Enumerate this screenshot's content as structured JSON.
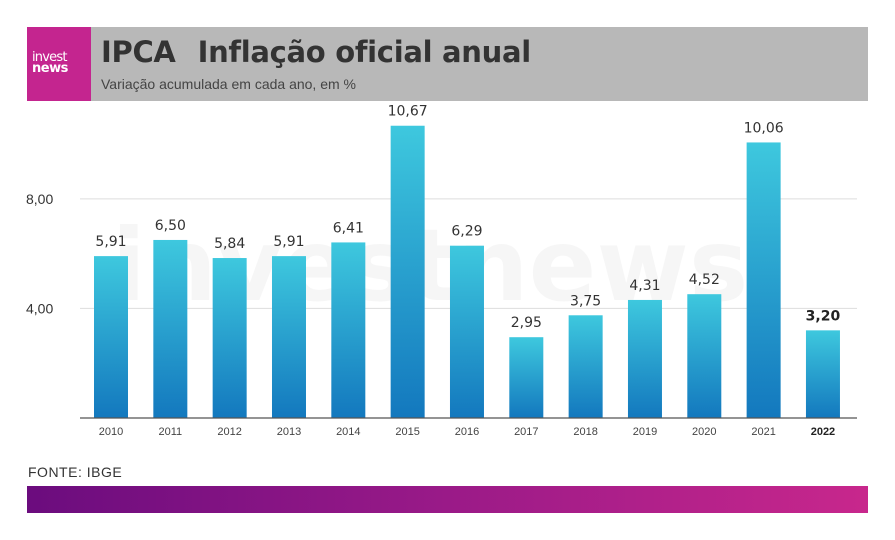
{
  "brand": {
    "logo_top": "invest",
    "logo_bottom": "news",
    "watermark": "investnews"
  },
  "header": {
    "acronym": "IPCA",
    "title": "Inflação oficial anual",
    "subtitle": "Variação acumulada em cada ano, em %"
  },
  "source": "FONTE: IBGE",
  "colors": {
    "bar_top": "#3ec8de",
    "bar_bottom": "#1378be",
    "header_bg": "#b8b8b8",
    "logo_bg": "#c4258f",
    "gradient_start": "#6b0c7e",
    "gradient_end": "#c8278c"
  },
  "chart_data": {
    "type": "bar",
    "categories": [
      "2010",
      "2011",
      "2012",
      "2013",
      "2014",
      "2015",
      "2016",
      "2017",
      "2018",
      "2019",
      "2020",
      "2021",
      "2022"
    ],
    "values": [
      5.91,
      6.5,
      5.84,
      5.91,
      6.41,
      10.67,
      6.29,
      2.95,
      3.75,
      4.31,
      4.52,
      10.06,
      3.2
    ],
    "value_labels": [
      "5,91",
      "6,50",
      "5,84",
      "5,91",
      "6,41",
      "10,67",
      "6,29",
      "2,95",
      "3,75",
      "4,31",
      "4,52",
      "10,06",
      "3,20"
    ],
    "highlight": "2022",
    "yticks": [
      4,
      8
    ],
    "ytick_labels": [
      "4,00",
      "8,00"
    ],
    "ylim": [
      0,
      11.5
    ],
    "grid": true,
    "legend": "none",
    "title": "IPCA Inflação oficial anual",
    "subtitle": "Variação acumulada em cada ano, em %",
    "xlabel": "",
    "ylabel": ""
  }
}
